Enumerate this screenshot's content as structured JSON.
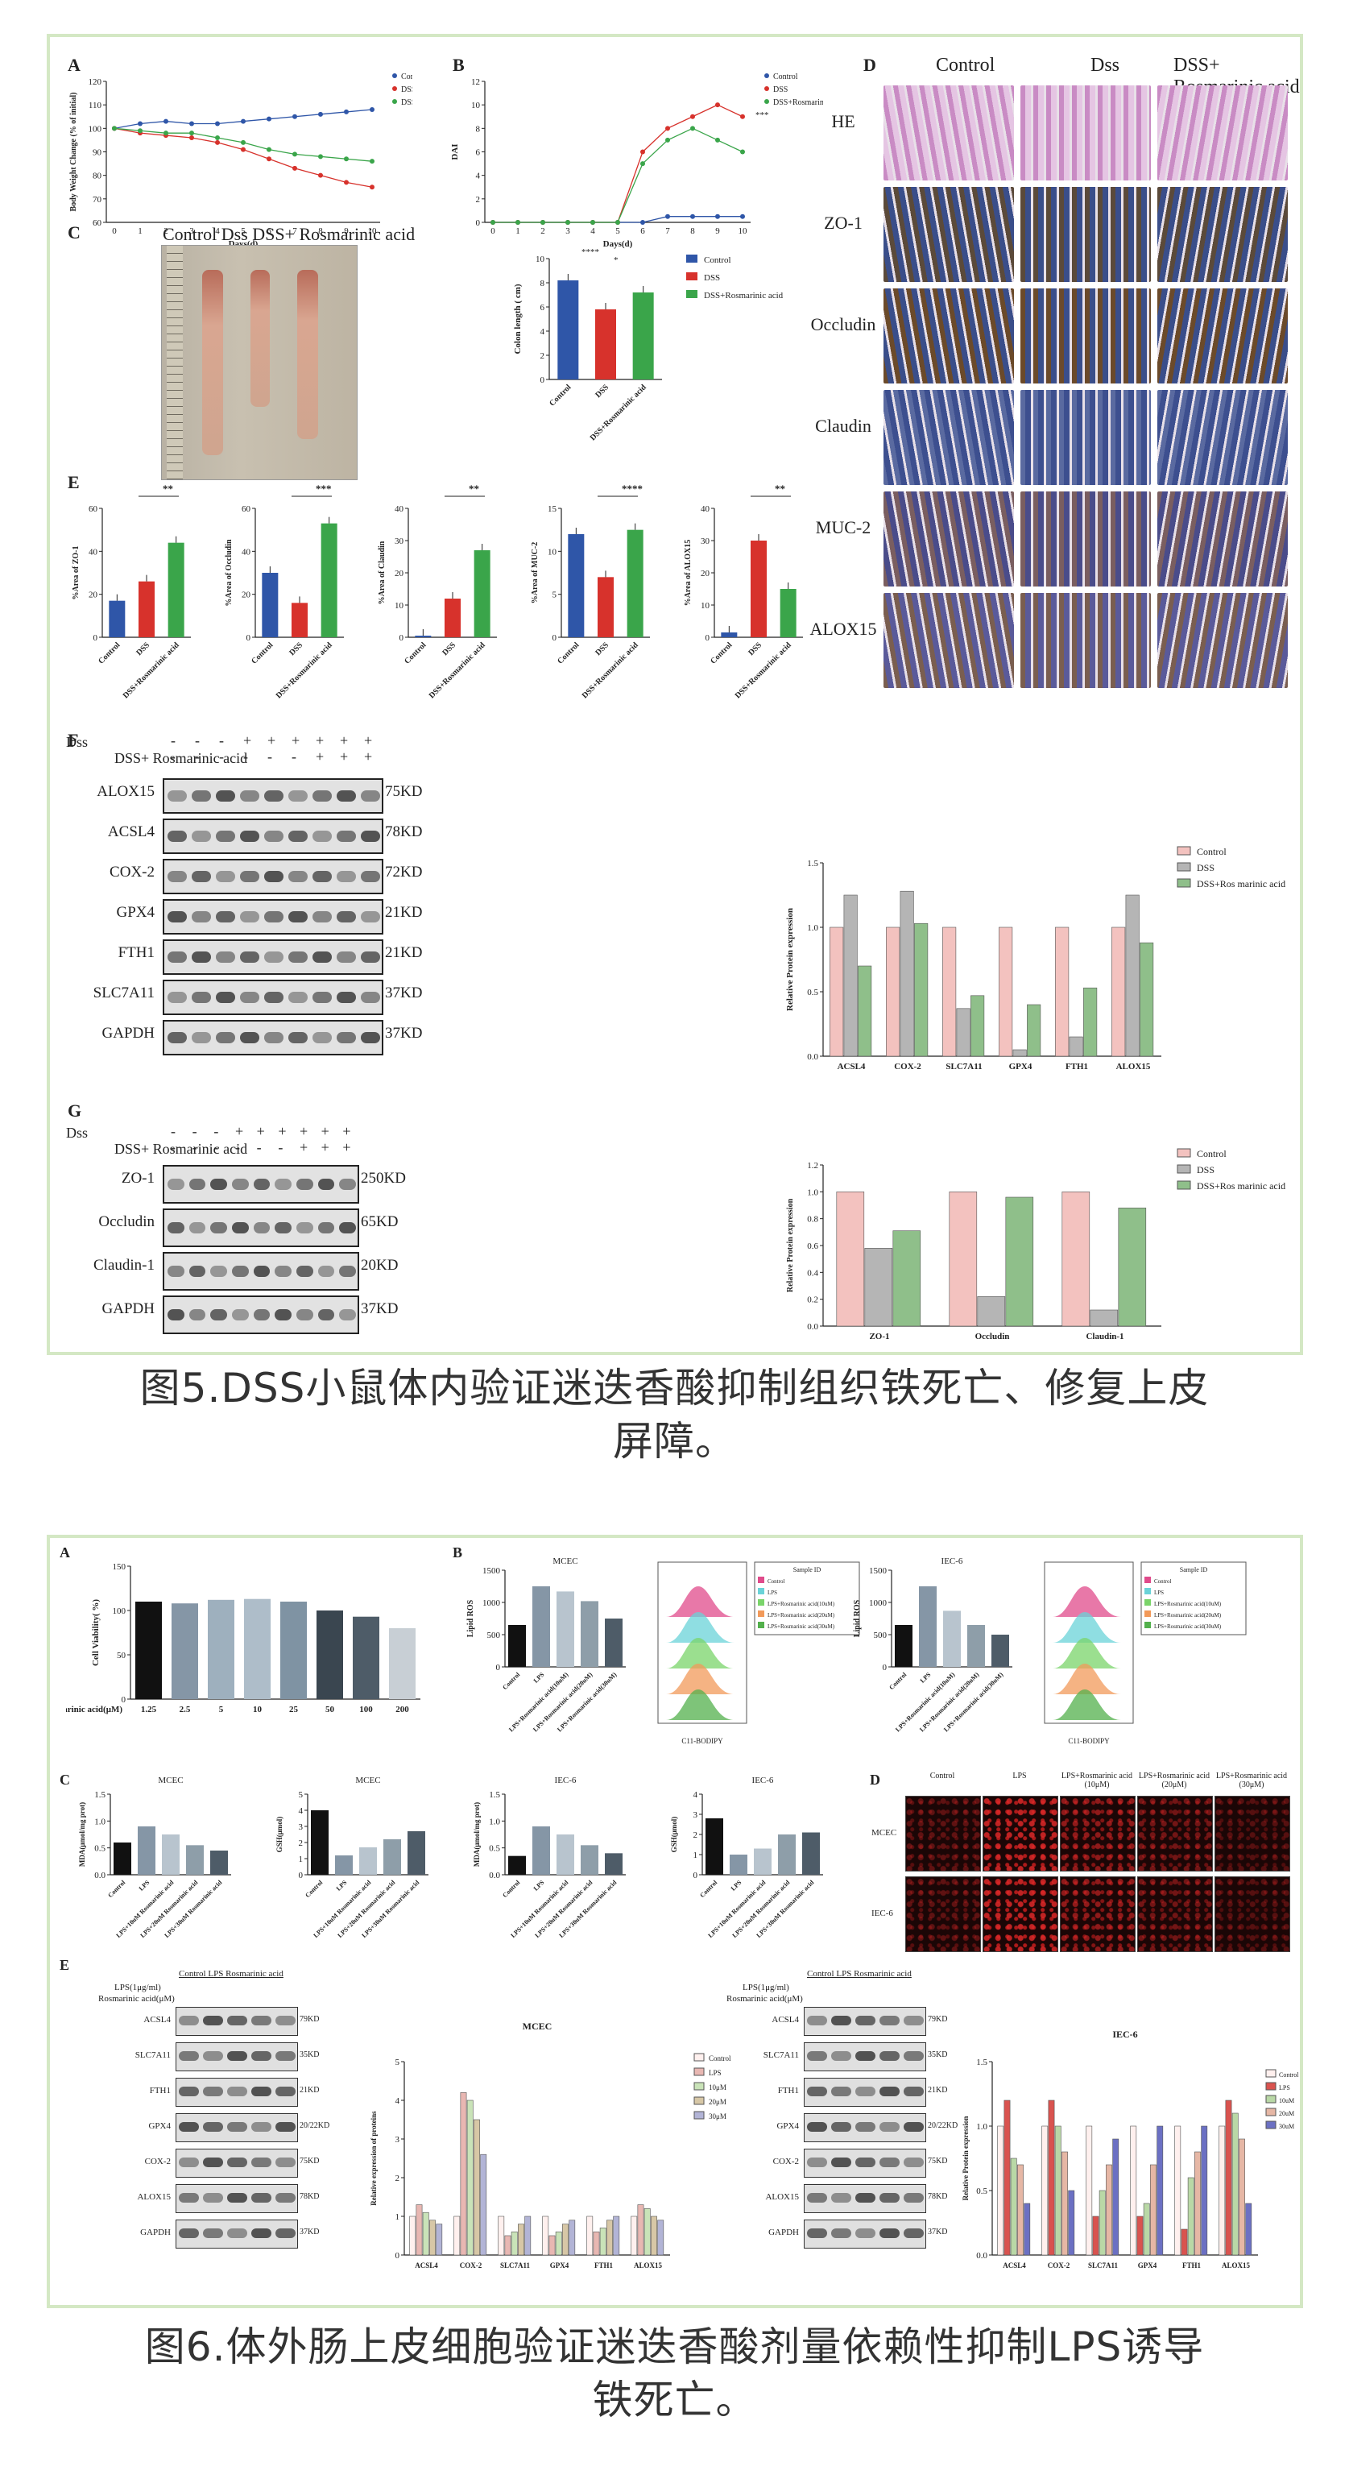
{
  "figure5": {
    "caption_line1": "图5.DSS小鼠体内验证迷迭香酸抑制组织铁死亡、修复上皮",
    "caption_line2": "屏障。",
    "panels": {
      "A": "A",
      "B": "B",
      "C": "C",
      "D": "D",
      "E": "E",
      "F": "F",
      "G": "G"
    },
    "legend": {
      "control": "Control",
      "dss": "DSS",
      "dss_ra": "DSS+Rosmarinic acid"
    },
    "panelA": {
      "ylabel": "Body Weight Change (% of initial)",
      "xlabel": "Days(d)",
      "yticks": [
        "60",
        "70",
        "80",
        "90",
        "100",
        "110",
        "120"
      ],
      "xticks": [
        "0",
        "1",
        "2",
        "3",
        "4",
        "5",
        "6",
        "7",
        "8",
        "9",
        "10"
      ]
    },
    "panelB": {
      "ylabel": "DAI",
      "xlabel": "Days(d)",
      "yticks": [
        "0",
        "2",
        "4",
        "6",
        "8",
        "10",
        "12"
      ],
      "xticks": [
        "0",
        "1",
        "2",
        "3",
        "4",
        "5",
        "6",
        "7",
        "8",
        "9",
        "10"
      ],
      "sig": "***"
    },
    "panelC": {
      "photo_labels": "Control    Dss    DSS+ Rosmarinic acid",
      "ylabel": "Colon length ( cm)",
      "yticks": [
        "0",
        "2",
        "4",
        "6",
        "8",
        "10"
      ],
      "categories": [
        "Control",
        "DSS",
        "DSS+Rosmarinic acid"
      ],
      "sig1": "****",
      "sig2": "*"
    },
    "panelD": {
      "columns": [
        "Control",
        "Dss",
        "DSS+ Rosmarinic acid"
      ],
      "rows": [
        "HE",
        "ZO-1",
        "Occludin",
        "Claudin",
        "MUC-2",
        "ALOX15"
      ]
    },
    "panelE": {
      "charts": [
        {
          "ylabel": "%Area of ZO-1",
          "sig": "**",
          "yticks": [
            "0",
            "20",
            "40",
            "60"
          ]
        },
        {
          "ylabel": "%Area of Occludin",
          "sig": "***",
          "yticks": [
            "0",
            "20",
            "40",
            "60"
          ]
        },
        {
          "ylabel": "%Area of Claudin",
          "sig": "**",
          "yticks": [
            "0",
            "10",
            "20",
            "30",
            "40"
          ]
        },
        {
          "ylabel": "%Area of MUC-2",
          "sig": "****",
          "yticks": [
            "0",
            "5",
            "10",
            "15"
          ]
        },
        {
          "ylabel": "%Area of ALOX15",
          "sig": "**",
          "yticks": [
            "0",
            "10",
            "20",
            "30",
            "40"
          ]
        }
      ],
      "categories": [
        "Control",
        "DSS",
        "DSS+Rosmarinic acid"
      ]
    },
    "panelF": {
      "treat1": "Dss",
      "treat2": "DSS+ Rosmarinic acid",
      "signs1": [
        "-",
        "-",
        "-",
        "+",
        "+",
        "+",
        "+",
        "+",
        "+"
      ],
      "signs2": [
        "-",
        "-",
        "-",
        "-",
        "-",
        "-",
        "+",
        "+",
        "+"
      ],
      "proteins": [
        "ALOX15",
        "ACSL4",
        "COX-2",
        "GPX4",
        "FTH1",
        "SLC7A11",
        "GAPDH"
      ],
      "kd": [
        "75KD",
        "78KD",
        "72KD",
        "21KD",
        "21KD",
        "37KD",
        "37KD"
      ],
      "chart_ylabel": "Relative Protein expression",
      "chart_categories": [
        "ACSL4",
        "COX-2",
        "SLC7A11",
        "GPX4",
        "FTH1",
        "ALOX15"
      ],
      "legend": [
        "Control",
        "DSS",
        "DSS+Ros marinic acid"
      ]
    },
    "panelG": {
      "treat1": "Dss",
      "treat2": "DSS+ Rosmarinic acid",
      "signs1": [
        "-",
        "-",
        "-",
        "+",
        "+",
        "+",
        "+",
        "+",
        "+"
      ],
      "signs2": [
        "-",
        "-",
        "-",
        "-",
        "-",
        "-",
        "+",
        "+",
        "+"
      ],
      "proteins": [
        "ZO-1",
        "Occludin",
        "Claudin-1",
        "GAPDH"
      ],
      "kd": [
        "250KD",
        "65KD",
        "20KD",
        "37KD"
      ],
      "chart_ylabel": "Relative Protein expression",
      "chart_categories": [
        "ZO-1",
        "Occludin",
        "Claudin-1"
      ],
      "legend": [
        "Control",
        "DSS",
        "DSS+Ros marinic acid"
      ]
    }
  },
  "figure6": {
    "caption_line1": "图6.体外肠上皮细胞验证迷迭香酸剂量依赖性抑制LPS诱导",
    "caption_line2": "铁死亡。",
    "panels": {
      "A": "A",
      "B": "B",
      "C": "C",
      "D": "D",
      "E": "E"
    },
    "panelA": {
      "ylabel": "Cell Viability( %)",
      "xlabel": "Rosmarinic acid(μM)",
      "categories": [
        "1.25",
        "2.5",
        "5",
        "10",
        "25",
        "50",
        "100",
        "200"
      ],
      "yticks": [
        "0",
        "50",
        "100",
        "150"
      ]
    },
    "panelB": {
      "titles": [
        "MCEC",
        "IEC-6"
      ],
      "ylabel": "Lipid ROS",
      "categories": [
        "Control",
        "LPS",
        "LPS+Rosmarinic acid(10uM)",
        "LPS+Rosmarinic acid(20uM)",
        "LPS+Rosmarinic acid(30uM)"
      ],
      "flow_xlabel": "C11-BODIPY",
      "flow_legend_title": "Sample ID",
      "flow_legend": [
        "Control",
        "LPS",
        "LPS+Rosmarinic acid(10uM)",
        "LPS+Rosmarinic acid(20uM)",
        "LPS+Rosmarinic acid(30uM)"
      ]
    },
    "panelC": {
      "titles": [
        "MCEC",
        "MCEC",
        "IEC-6",
        "IEC-6"
      ],
      "ylabels": [
        "MDA(μmol/mg prot)",
        "GSH(μmol)",
        "MDA(μmol/mg prot)",
        "GSH(μmol)"
      ],
      "categories": [
        "Control",
        "LPS",
        "LPS+10uM Rosmarinic acid",
        "LPS+20uM Rosmarinic acid",
        "LPS+30uM Rosmarinic acid"
      ]
    },
    "panelD": {
      "columns": [
        "Control",
        "LPS",
        "LPS+Rosmarinic acid (10μM)",
        "LPS+Rosmarinic acid (20μM)",
        "LPS+Rosmarinic acid (30μM)"
      ],
      "rows": [
        "MCEC",
        "IEC-6"
      ]
    },
    "panelE": {
      "header": "Control LPS   Rosmarinic acid",
      "treat1": "LPS(1μg/ml)",
      "treat2": "Rosmarinic acid(μM)",
      "proteins": [
        "ACSL4",
        "SLC7A11",
        "FTH1",
        "GPX4",
        "COX-2",
        "ALOX15",
        "GAPDH"
      ],
      "kd_left": [
        "79KD",
        "35KD",
        "21KD",
        "20/22KD",
        "75KD",
        "78KD",
        "37KD"
      ],
      "kd_right": [
        "79KD",
        "35KD",
        "21KD",
        "20/22KD",
        "75KD",
        "78KD",
        "37KD"
      ],
      "chart_titles": [
        "MCEC",
        "IEC-6"
      ],
      "chart_ylabels": [
        "Relative expression of proteins",
        "Relative Protein expression"
      ],
      "chart_categories": [
        "ACSL4",
        "COX-2",
        "SLC7A11",
        "GPX4",
        "FTH1",
        "ALOX15"
      ],
      "legend_left": [
        "Control",
        "LPS",
        "10μM",
        "20μM",
        "30μM"
      ],
      "legend_right": [
        "Control",
        "LPS",
        "10uM",
        "20uM",
        "30uM"
      ]
    }
  },
  "colors": {
    "control": "#2f56a8",
    "dss": "#d7322c",
    "dss_ra": "#3aa54a",
    "ctrl_pink": "#f3c2bf",
    "dss_grey": "#b5b5b5",
    "ra_green": "#8fbf8a",
    "frame": "#d4e8c4"
  },
  "chart_data": [
    {
      "type": "line",
      "id": "5A",
      "x": [
        0,
        1,
        2,
        3,
        4,
        5,
        6,
        7,
        8,
        9,
        10
      ],
      "series": [
        {
          "name": "Control",
          "values": [
            100,
            102,
            103,
            102,
            102,
            103,
            104,
            105,
            106,
            107,
            108
          ]
        },
        {
          "name": "DSS",
          "values": [
            100,
            98,
            97,
            96,
            94,
            91,
            87,
            83,
            80,
            77,
            75
          ]
        },
        {
          "name": "DSS+Rosmarinic acid",
          "values": [
            100,
            99,
            98,
            98,
            96,
            94,
            91,
            89,
            88,
            87,
            86
          ]
        }
      ],
      "ylim": [
        60,
        120
      ]
    },
    {
      "type": "line",
      "id": "5B",
      "x": [
        0,
        1,
        2,
        3,
        4,
        5,
        6,
        7,
        8,
        9,
        10
      ],
      "series": [
        {
          "name": "Control",
          "values": [
            0,
            0,
            0,
            0,
            0,
            0,
            0,
            0.5,
            0.5,
            0.5,
            0.5
          ]
        },
        {
          "name": "DSS",
          "values": [
            0,
            0,
            0,
            0,
            0,
            0,
            6,
            8,
            9,
            10,
            9
          ]
        },
        {
          "name": "DSS+Rosmarinic acid",
          "values": [
            0,
            0,
            0,
            0,
            0,
            0,
            5,
            7,
            8,
            7,
            6
          ]
        }
      ],
      "ylim": [
        0,
        12
      ]
    },
    {
      "type": "bar",
      "id": "5C",
      "categories": [
        "Control",
        "DSS",
        "DSS+Rosmarinic acid"
      ],
      "values": [
        8.2,
        5.8,
        7.2
      ],
      "ylim": [
        0,
        10
      ]
    },
    {
      "type": "bar",
      "id": "5E-ZO1",
      "categories": [
        "Control",
        "DSS",
        "DSS+Rosmarinic acid"
      ],
      "values": [
        17,
        26,
        44
      ],
      "ylim": [
        0,
        60
      ]
    },
    {
      "type": "bar",
      "id": "5E-Occludin",
      "categories": [
        "Control",
        "DSS",
        "DSS+Rosmarinic acid"
      ],
      "values": [
        30,
        16,
        53
      ],
      "ylim": [
        0,
        60
      ]
    },
    {
      "type": "bar",
      "id": "5E-Claudin",
      "categories": [
        "Control",
        "DSS",
        "DSS+Rosmarinic acid"
      ],
      "values": [
        0.5,
        12,
        27
      ],
      "ylim": [
        0,
        40
      ]
    },
    {
      "type": "bar",
      "id": "5E-MUC2",
      "categories": [
        "Control",
        "DSS",
        "DSS+Rosmarinic acid"
      ],
      "values": [
        12,
        7,
        12.5
      ],
      "ylim": [
        0,
        15
      ]
    },
    {
      "type": "bar",
      "id": "5E-ALOX15",
      "categories": [
        "Control",
        "DSS",
        "DSS+Rosmarinic acid"
      ],
      "values": [
        1.5,
        30,
        15
      ],
      "ylim": [
        0,
        40
      ]
    },
    {
      "type": "bar",
      "id": "5F",
      "categories": [
        "ACSL4",
        "COX-2",
        "SLC7A11",
        "GPX4",
        "FTH1",
        "ALOX15"
      ],
      "series": [
        {
          "name": "Control",
          "values": [
            1,
            1,
            1,
            1,
            1,
            1
          ]
        },
        {
          "name": "DSS",
          "values": [
            1.25,
            1.28,
            0.37,
            0.05,
            0.15,
            1.25
          ]
        },
        {
          "name": "DSS+Ros marinic acid",
          "values": [
            0.7,
            1.03,
            0.47,
            0.4,
            0.53,
            0.88
          ]
        }
      ],
      "ylim": [
        0,
        1.5
      ]
    },
    {
      "type": "bar",
      "id": "5G",
      "categories": [
        "ZO-1",
        "Occludin",
        "Claudin-1"
      ],
      "series": [
        {
          "name": "Control",
          "values": [
            1,
            1,
            1
          ]
        },
        {
          "name": "DSS",
          "values": [
            0.58,
            0.22,
            0.12
          ]
        },
        {
          "name": "DSS+Ros marinic acid",
          "values": [
            0.71,
            0.96,
            0.88
          ]
        }
      ],
      "ylim": [
        0,
        1.2
      ]
    },
    {
      "type": "bar",
      "id": "6A",
      "categories": [
        "1.25",
        "2.5",
        "5",
        "10",
        "25",
        "50",
        "100",
        "200"
      ],
      "values": [
        110,
        108,
        112,
        113,
        110,
        100,
        93,
        80
      ],
      "ylim": [
        0,
        150
      ]
    },
    {
      "type": "bar",
      "id": "6B-MCEC",
      "categories": [
        "Control",
        "LPS",
        "10uM",
        "20uM",
        "30uM"
      ],
      "values": [
        650,
        1250,
        1170,
        1020,
        750
      ],
      "ylim": [
        0,
        1500
      ]
    },
    {
      "type": "bar",
      "id": "6B-IEC6",
      "categories": [
        "Control",
        "LPS",
        "10uM",
        "20uM",
        "30uM"
      ],
      "values": [
        650,
        1250,
        870,
        650,
        500
      ],
      "ylim": [
        0,
        1500
      ]
    },
    {
      "type": "bar",
      "id": "6C-MCEC-MDA",
      "categories": [
        "Control",
        "LPS",
        "10uM",
        "20uM",
        "30uM"
      ],
      "values": [
        0.6,
        0.9,
        0.75,
        0.55,
        0.45
      ],
      "ylim": [
        0,
        1.5
      ]
    },
    {
      "type": "bar",
      "id": "6C-MCEC-GSH",
      "categories": [
        "Control",
        "LPS",
        "10uM",
        "20uM",
        "30uM"
      ],
      "values": [
        4,
        1.2,
        1.7,
        2.2,
        2.7
      ],
      "ylim": [
        0,
        5
      ]
    },
    {
      "type": "bar",
      "id": "6C-IEC6-MDA",
      "categories": [
        "Control",
        "LPS",
        "10uM",
        "20uM",
        "30uM"
      ],
      "values": [
        0.35,
        0.9,
        0.75,
        0.55,
        0.4
      ],
      "ylim": [
        0,
        1.5
      ]
    },
    {
      "type": "bar",
      "id": "6C-IEC6-GSH",
      "categories": [
        "Control",
        "LPS",
        "10uM",
        "20uM",
        "30uM"
      ],
      "values": [
        2.8,
        1.0,
        1.3,
        2.0,
        2.1
      ],
      "ylim": [
        0,
        4
      ]
    },
    {
      "type": "bar",
      "id": "6E-MCEC",
      "categories": [
        "ACSL4",
        "COX-2",
        "SLC7A11",
        "GPX4",
        "FTH1",
        "ALOX15"
      ],
      "series": [
        {
          "name": "Control",
          "values": [
            1,
            1,
            1,
            1,
            1,
            1
          ]
        },
        {
          "name": "LPS",
          "values": [
            1.3,
            4.2,
            0.5,
            0.5,
            0.6,
            1.3
          ]
        },
        {
          "name": "10μM",
          "values": [
            1.1,
            4.0,
            0.6,
            0.6,
            0.7,
            1.2
          ]
        },
        {
          "name": "20μM",
          "values": [
            0.9,
            3.5,
            0.8,
            0.8,
            0.9,
            1.0
          ]
        },
        {
          "name": "30μM",
          "values": [
            0.8,
            2.6,
            1.0,
            0.9,
            1.0,
            0.9
          ]
        }
      ],
      "ylim": [
        0,
        5
      ]
    },
    {
      "type": "bar",
      "id": "6E-IEC6",
      "categories": [
        "ACSL4",
        "COX-2",
        "SLC7A11",
        "GPX4",
        "FTH1",
        "ALOX15"
      ],
      "series": [
        {
          "name": "Control",
          "values": [
            1,
            1,
            1,
            1,
            1,
            1
          ]
        },
        {
          "name": "LPS",
          "values": [
            1.2,
            1.2,
            0.3,
            0.3,
            0.2,
            1.2
          ]
        },
        {
          "name": "10uM",
          "values": [
            0.75,
            1.0,
            0.5,
            0.4,
            0.6,
            1.1
          ]
        },
        {
          "name": "20uM",
          "values": [
            0.7,
            0.8,
            0.7,
            0.7,
            0.8,
            0.9
          ]
        },
        {
          "name": "30uM",
          "values": [
            0.4,
            0.5,
            0.9,
            1.0,
            1.0,
            0.4
          ]
        }
      ],
      "ylim": [
        0,
        1.5
      ]
    }
  ]
}
